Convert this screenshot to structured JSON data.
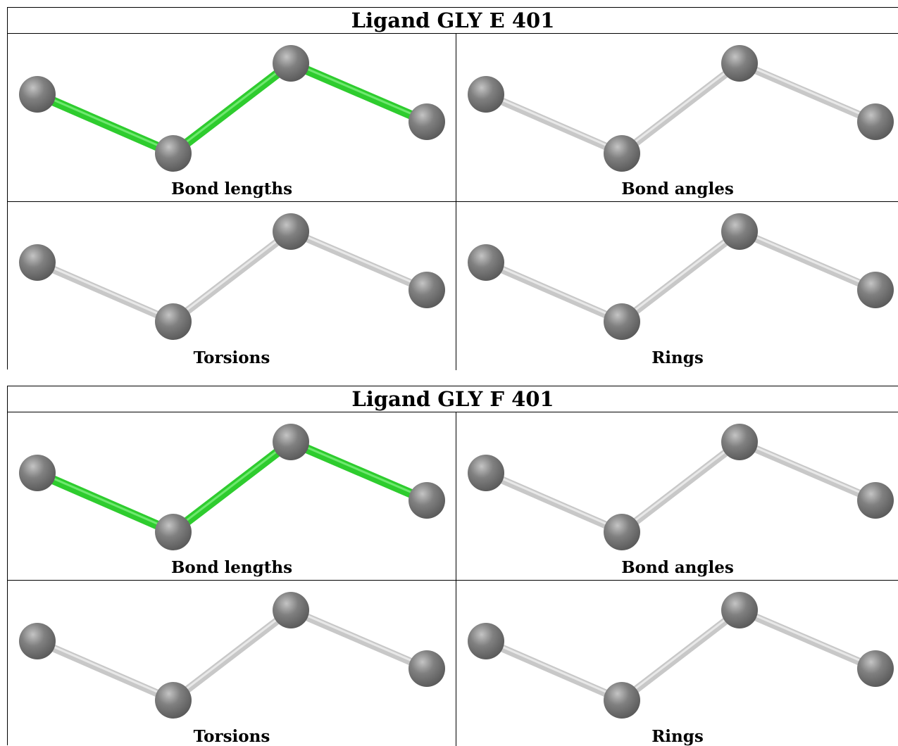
{
  "ligands": [
    {
      "title": "Ligand GLY E 401",
      "panels": [
        {
          "caption": "Bond lengths",
          "bond_color": "#2ecc2e"
        },
        {
          "caption": "Bond angles",
          "bond_color": "#c8c8c8"
        },
        {
          "caption": "Torsions",
          "bond_color": "#c8c8c8"
        },
        {
          "caption": "Rings",
          "bond_color": "#c8c8c8"
        }
      ]
    },
    {
      "title": "Ligand GLY F 401",
      "panels": [
        {
          "caption": "Bond lengths",
          "bond_color": "#2ecc2e"
        },
        {
          "caption": "Bond angles",
          "bond_color": "#c8c8c8"
        },
        {
          "caption": "Torsions",
          "bond_color": "#c8c8c8"
        },
        {
          "caption": "Rings",
          "bond_color": "#c8c8c8"
        }
      ]
    }
  ],
  "atom_color": "#808080"
}
